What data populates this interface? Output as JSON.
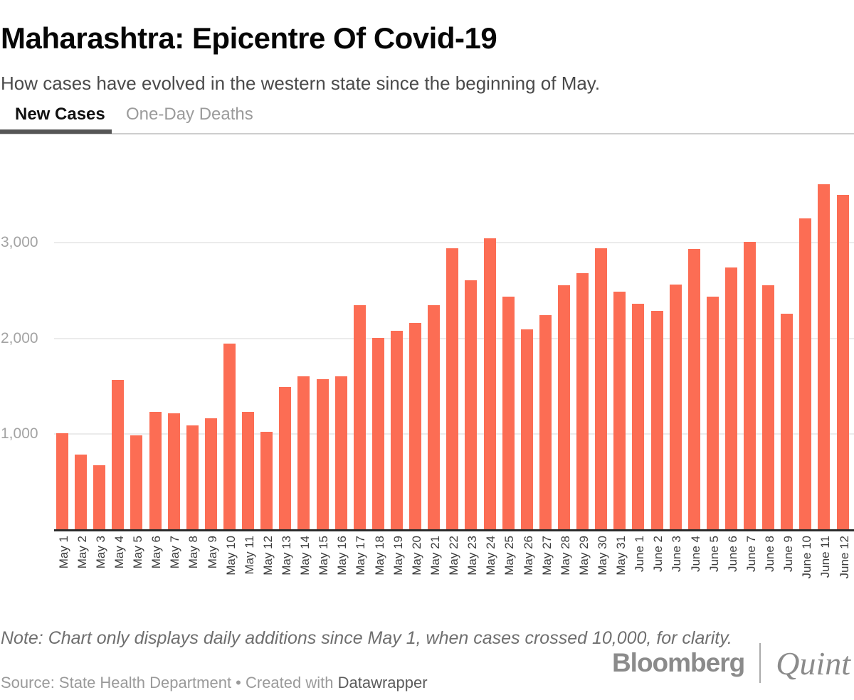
{
  "tabs": [
    {
      "label": "New Cases",
      "active": true
    },
    {
      "label": "One-Day Deaths",
      "active": false
    }
  ],
  "chart_data": {
    "type": "bar",
    "title": "Maharashtra: Epicentre Of Covid-19",
    "subtitle": "How cases have evolved in the western state since the beginning of May.",
    "categories": [
      "May 1",
      "May 2",
      "May 3",
      "May 4",
      "May 5",
      "May 6",
      "May 7",
      "May 8",
      "May 9",
      "May 10",
      "May 11",
      "May 12",
      "May 13",
      "May 14",
      "May 15",
      "May 16",
      "May 17",
      "May 18",
      "May 19",
      "May 20",
      "May 21",
      "May 22",
      "May 23",
      "May 24",
      "May 25",
      "May 26",
      "May 27",
      "May 28",
      "May 29",
      "May 30",
      "May 31",
      "June 1",
      "June 2",
      "June 3",
      "June 4",
      "June 5",
      "June 6",
      "June 7",
      "June 8",
      "June 9",
      "June 10",
      "June 11",
      "June 12"
    ],
    "values": [
      1008,
      790,
      678,
      1567,
      985,
      1233,
      1216,
      1089,
      1165,
      1943,
      1230,
      1026,
      1495,
      1602,
      1576,
      1606,
      2347,
      2005,
      2078,
      2161,
      2345,
      2940,
      2608,
      3041,
      2436,
      2091,
      2238,
      2556,
      2682,
      2940,
      2487,
      2361,
      2287,
      2560,
      2933,
      2436,
      2739,
      3007,
      2553,
      2259,
      3254,
      3607,
      3493
    ],
    "xlabel": "",
    "ylabel": "",
    "ylim": [
      0,
      4000
    ],
    "yticks": [
      1000,
      2000,
      3000
    ],
    "ytick_labels": [
      "1,000",
      "2,000",
      "3,000"
    ],
    "grid": true,
    "legend": "none",
    "bar_color": "#fc6d54"
  },
  "footer": {
    "note": "Note: Chart only displays daily additions since May 1, when cases crossed 10,000, for clarity.",
    "source_prefix": "Source: State Health Department • Created with ",
    "source_tool": "Datawrapper"
  },
  "branding": {
    "bloomberg": "Bloomberg",
    "quint": "Quint"
  },
  "colors": {
    "bar": "#fc6d54",
    "active_tab_underline": "#565656",
    "gridline": "#ebebeb",
    "axis_line": "#2b2b2b"
  }
}
